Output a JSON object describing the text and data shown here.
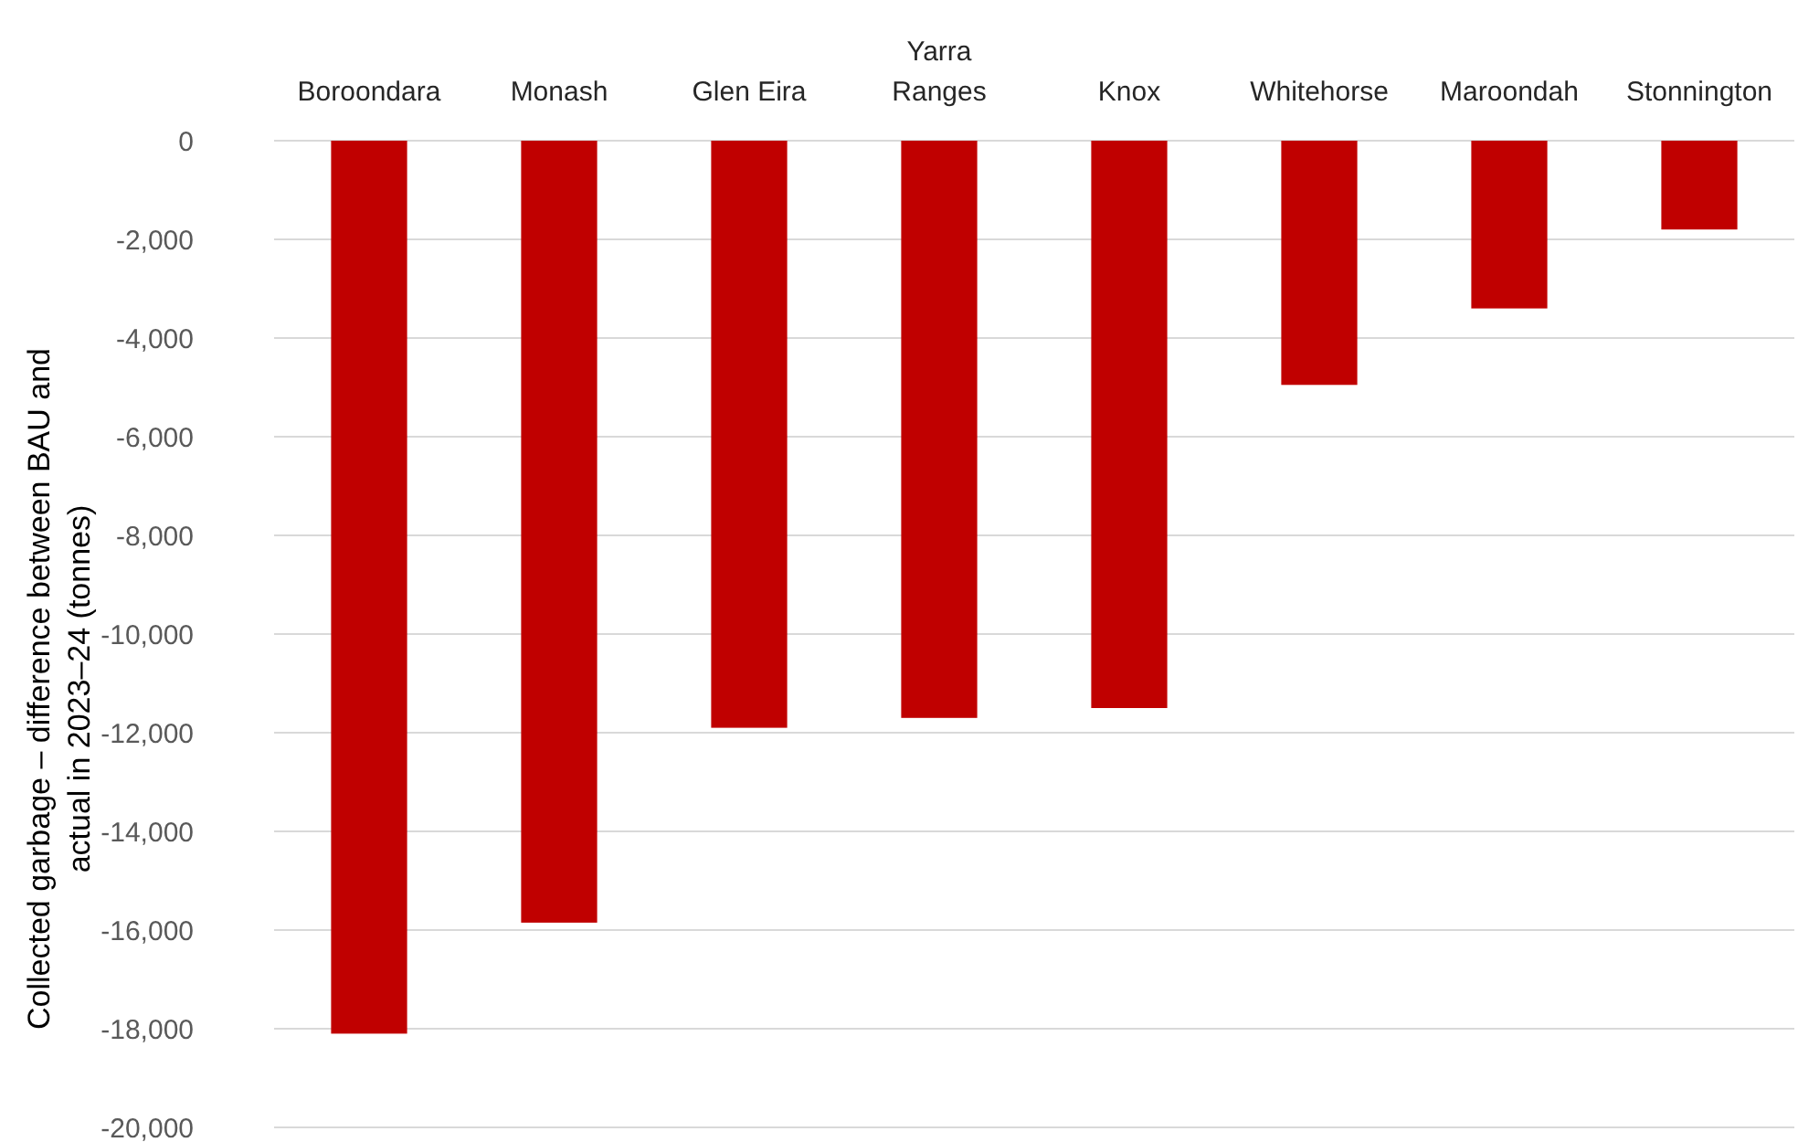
{
  "chart_data": {
    "type": "bar",
    "ylabel": "Collected garbage – difference between BAU and actual in 2023–24 (tonnes)",
    "categories": [
      "Boroondara",
      "Monash",
      "Glen Eira",
      "Yarra Ranges",
      "Knox",
      "Whitehorse",
      "Maroondah",
      "Stonnington"
    ],
    "values": [
      -18100,
      -15850,
      -11900,
      -11700,
      -11500,
      -4950,
      -3400,
      -1800
    ],
    "color": "#c00000",
    "ylim": [
      -20000,
      0
    ],
    "yticks": [
      {
        "value": -20000,
        "label": "-20,000"
      },
      {
        "value": -18000,
        "label": "-18,000"
      },
      {
        "value": -16000,
        "label": "-16,000"
      },
      {
        "value": -14000,
        "label": "-14,000"
      },
      {
        "value": -12000,
        "label": "-12,000"
      },
      {
        "value": -10000,
        "label": "-10,000"
      },
      {
        "value": -8000,
        "label": "-8,000"
      },
      {
        "value": -6000,
        "label": "-6,000"
      },
      {
        "value": -4000,
        "label": "-4,000"
      },
      {
        "value": -2000,
        "label": "-2,000"
      },
      0
    ],
    "grid": "y"
  }
}
